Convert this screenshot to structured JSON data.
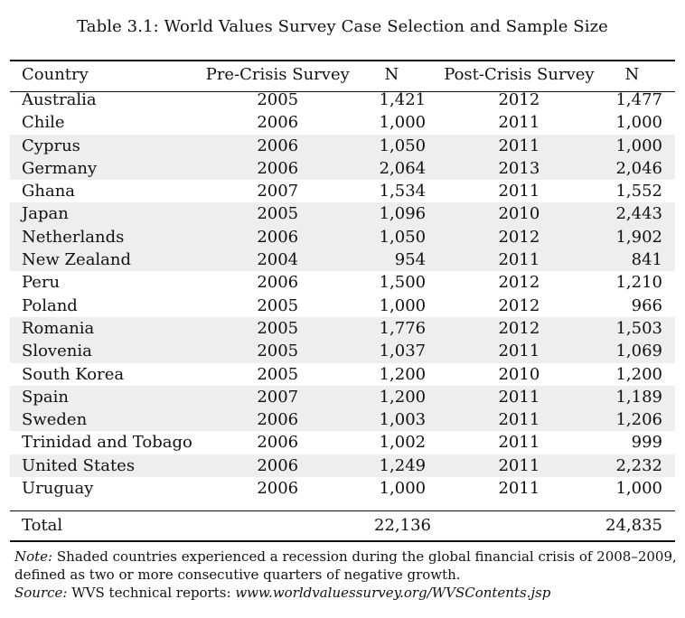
{
  "title": "Table 3.1: World Values Survey Case Selection and Sample Size",
  "headers": {
    "country": "Country",
    "pre": "Pre-Crisis Survey",
    "n1": "N",
    "post": "Post-Crisis Survey",
    "n2": "N"
  },
  "rows": [
    {
      "country": "Australia",
      "pre": "2005",
      "n1": "1,421",
      "post": "2012",
      "n2": "1,477",
      "shaded": false
    },
    {
      "country": "Chile",
      "pre": "2006",
      "n1": "1,000",
      "post": "2011",
      "n2": "1,000",
      "shaded": false
    },
    {
      "country": "Cyprus",
      "pre": "2006",
      "n1": "1,050",
      "post": "2011",
      "n2": "1,000",
      "shaded": true
    },
    {
      "country": "Germany",
      "pre": "2006",
      "n1": "2,064",
      "post": "2013",
      "n2": "2,046",
      "shaded": true
    },
    {
      "country": "Ghana",
      "pre": "2007",
      "n1": "1,534",
      "post": "2011",
      "n2": "1,552",
      "shaded": false
    },
    {
      "country": "Japan",
      "pre": "2005",
      "n1": "1,096",
      "post": "2010",
      "n2": "2,443",
      "shaded": true
    },
    {
      "country": "Netherlands",
      "pre": "2006",
      "n1": "1,050",
      "post": "2012",
      "n2": "1,902",
      "shaded": true
    },
    {
      "country": "New Zealand",
      "pre": "2004",
      "n1": "954",
      "post": "2011",
      "n2": "841",
      "shaded": true
    },
    {
      "country": "Peru",
      "pre": "2006",
      "n1": "1,500",
      "post": "2012",
      "n2": "1,210",
      "shaded": false
    },
    {
      "country": "Poland",
      "pre": "2005",
      "n1": "1,000",
      "post": "2012",
      "n2": "966",
      "shaded": false
    },
    {
      "country": "Romania",
      "pre": "2005",
      "n1": "1,776",
      "post": "2012",
      "n2": "1,503",
      "shaded": true
    },
    {
      "country": "Slovenia",
      "pre": "2005",
      "n1": "1,037",
      "post": "2011",
      "n2": "1,069",
      "shaded": true
    },
    {
      "country": "South Korea",
      "pre": "2005",
      "n1": "1,200",
      "post": "2010",
      "n2": "1,200",
      "shaded": false
    },
    {
      "country": "Spain",
      "pre": "2007",
      "n1": "1,200",
      "post": "2011",
      "n2": "1,189",
      "shaded": true
    },
    {
      "country": "Sweden",
      "pre": "2006",
      "n1": "1,003",
      "post": "2011",
      "n2": "1,206",
      "shaded": true
    },
    {
      "country": "Trinidad and Tobago",
      "pre": "2006",
      "n1": "1,002",
      "post": "2011",
      "n2": "999",
      "shaded": false
    },
    {
      "country": "United States",
      "pre": "2006",
      "n1": "1,249",
      "post": "2011",
      "n2": "2,232",
      "shaded": true
    },
    {
      "country": "Uruguay",
      "pre": "2006",
      "n1": "1,000",
      "post": "2011",
      "n2": "1,000",
      "shaded": false
    }
  ],
  "total": {
    "label": "Total",
    "n1": "22,136",
    "n2": "24,835"
  },
  "note": {
    "label": "Note:",
    "text": "Shaded countries experienced a recession during the global financial crisis of 2008–2009,",
    "text2": "defined as two or more consecutive quarters of negative growth.",
    "source_label": "Source:",
    "source_text": "WVS technical reports:",
    "source_url": "www.worldvaluessurvey.org/WVSContents.jsp"
  },
  "colors": {
    "shade": "#eeeeee",
    "text": "#111111"
  }
}
